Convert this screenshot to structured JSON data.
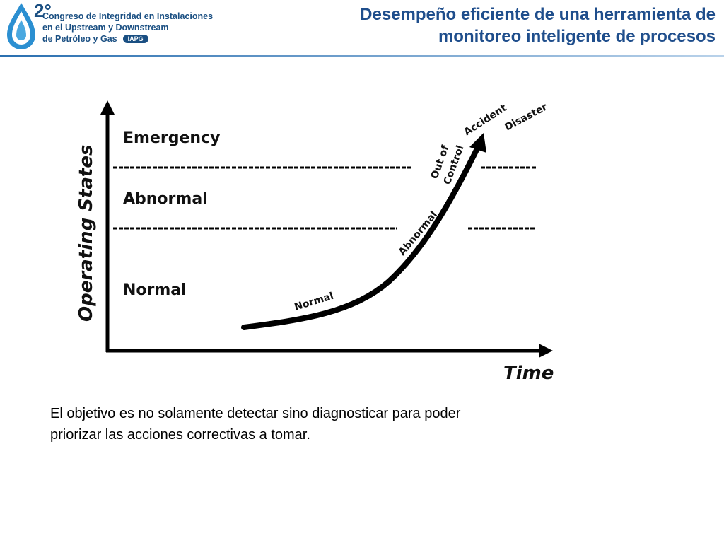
{
  "logo": {
    "degree": "2°",
    "line1": "Congreso de Integridad en Instalaciones",
    "line2": "en el Upstream y Downstream",
    "line3": "de Petróleo y Gas",
    "badge": "IAPG"
  },
  "title": {
    "line1": "Desempeño eficiente de una herramienta de",
    "line2": "monitoreo inteligente de procesos"
  },
  "diagram": {
    "y_axis_label": "Operating States",
    "x_axis_label": "Time",
    "zones": [
      "Emergency",
      "Abnormal",
      "Normal"
    ],
    "curve_labels": [
      "Normal",
      "Abnormal",
      "Out of",
      "Control",
      "Accident",
      "Disaster"
    ]
  },
  "caption": {
    "line1": "El objetivo es no solamente detectar sino diagnosticar para poder",
    "line2": "priorizar las acciones correctivas a tomar."
  }
}
